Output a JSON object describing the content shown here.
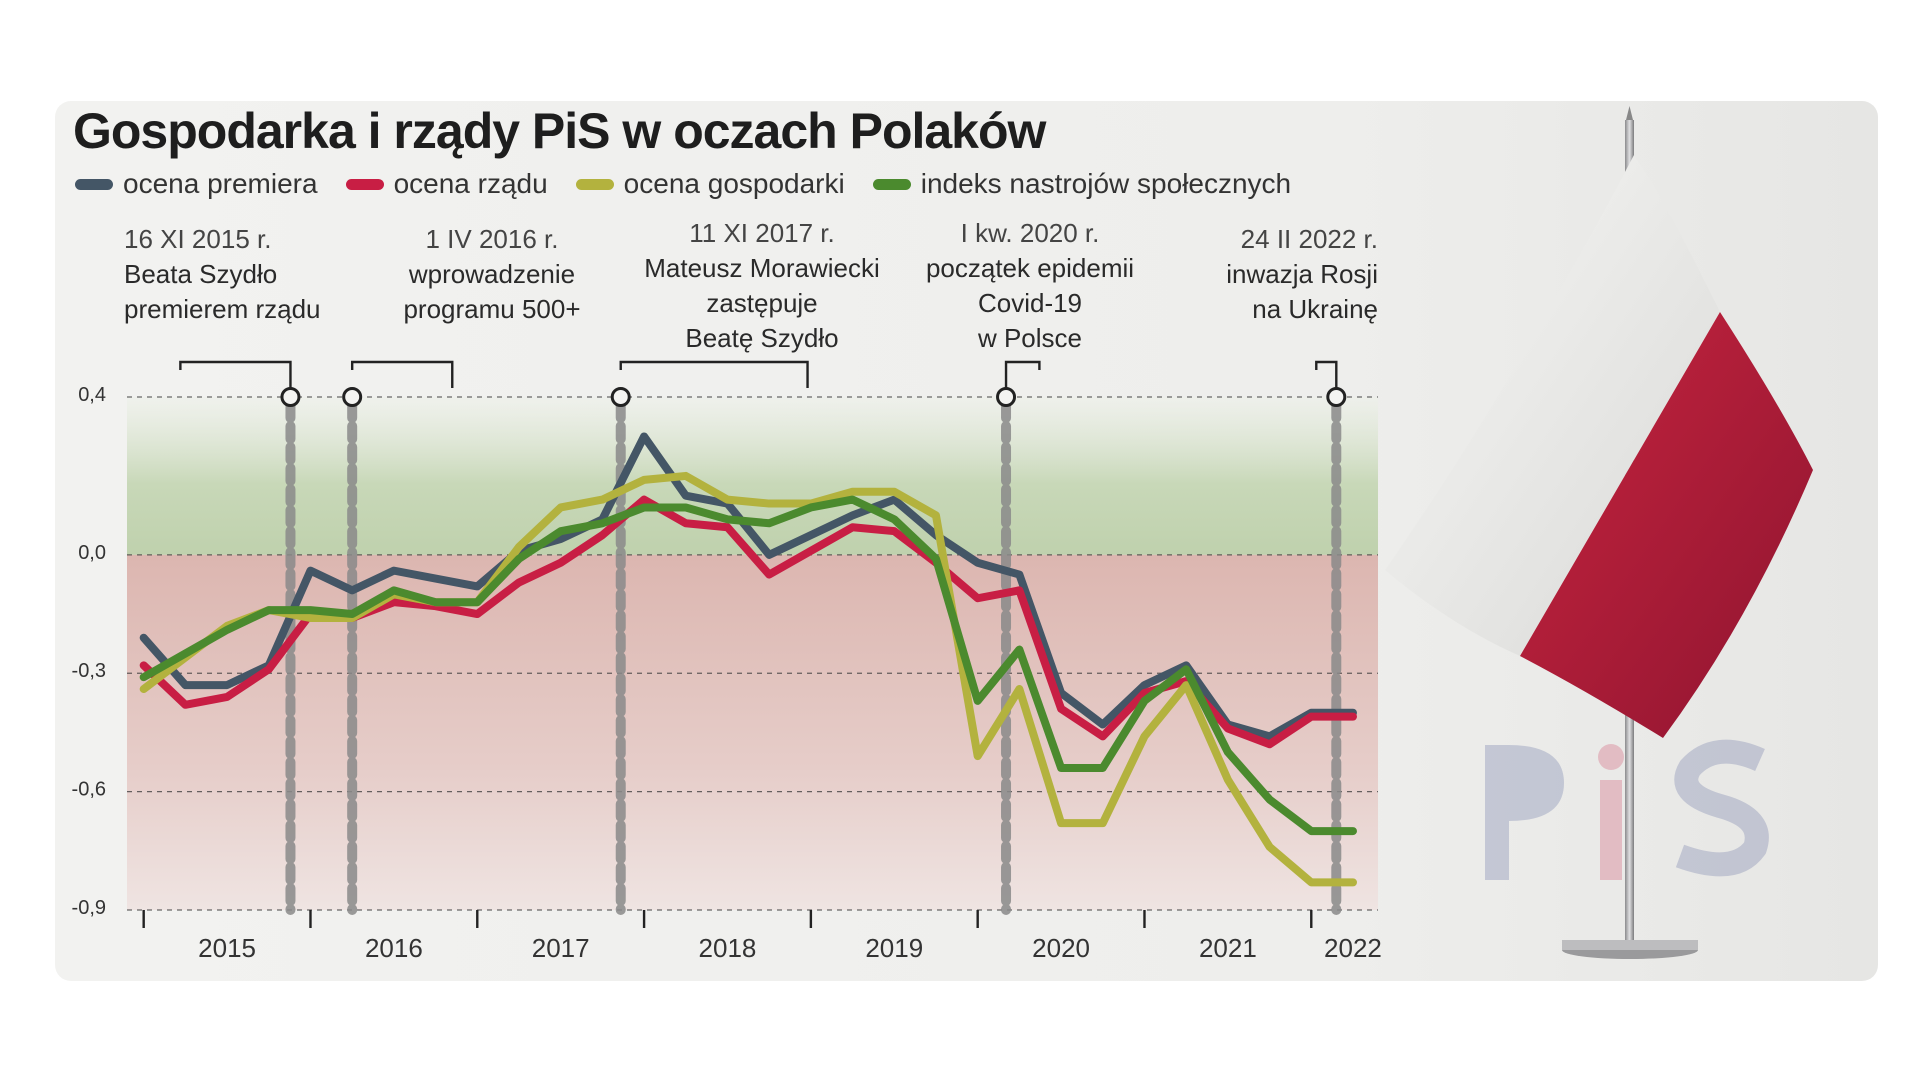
{
  "title": "Gospodarka i rządy PiS w oczach Polaków",
  "legend": [
    {
      "label": "ocena premiera",
      "color": "#445666"
    },
    {
      "label": "ocena rządu",
      "color": "#c81e44"
    },
    {
      "label": "ocena gospodarki",
      "color": "#b3b23e"
    },
    {
      "label": "indeks nastrojów społecznych",
      "color": "#4b8a2e"
    }
  ],
  "annotations": [
    {
      "date": "16 XI 2015 r.",
      "line1": "Beata Szydło",
      "line2": "premierem rządu",
      "line3": ""
    },
    {
      "date": "1 IV 2016 r.",
      "line1": "wprowadzenie",
      "line2": "programu 500+",
      "line3": ""
    },
    {
      "date": "11 XI 2017 r.",
      "line1": "Mateusz Morawiecki",
      "line2": "zastępuje",
      "line3": "Beatę Szydło"
    },
    {
      "date": "I kw. 2020 r.",
      "line1": "początek epidemii",
      "line2": "Covid-19",
      "line3": "w Polsce"
    },
    {
      "date": "24 II 2022 r.",
      "line1": "inwazja Rosji",
      "line2": "na Ukrainę",
      "line3": ""
    }
  ],
  "chart_data": {
    "type": "line",
    "title": "Gospodarka i rządy PiS w oczach Polaków",
    "xlabel": "",
    "ylabel": "",
    "ylim": [
      -0.9,
      0.4
    ],
    "y_ticks": [
      "0,4",
      "0,0",
      "-0,3",
      "-0,6",
      "-0,9"
    ],
    "y_tick_values": [
      0.4,
      0.0,
      -0.3,
      -0.6,
      -0.9
    ],
    "x_tick_labels": [
      "2015",
      "2016",
      "2017",
      "2018",
      "2019",
      "2020",
      "2021",
      "2022"
    ],
    "x_tick_values": [
      2015.0,
      2016.0,
      2017.0,
      2018.0,
      2019.0,
      2020.0,
      2021.0,
      2022.0
    ],
    "x_label_positions": [
      2015.5,
      2016.5,
      2017.5,
      2018.5,
      2019.5,
      2020.5,
      2021.5,
      2022.25
    ],
    "xlim": [
      2014.9,
      2022.4
    ],
    "event_x": [
      2015.88,
      2016.25,
      2017.86,
      2020.17,
      2022.15
    ],
    "x": [
      2015.0,
      2015.25,
      2015.5,
      2015.75,
      2016.0,
      2016.25,
      2016.5,
      2016.75,
      2017.0,
      2017.25,
      2017.5,
      2017.75,
      2018.0,
      2018.25,
      2018.5,
      2018.75,
      2019.0,
      2019.25,
      2019.5,
      2019.75,
      2020.0,
      2020.25,
      2020.5,
      2020.75,
      2021.0,
      2021.25,
      2021.5,
      2021.75,
      2022.0,
      2022.25
    ],
    "series": [
      {
        "name": "ocena premiera",
        "color": "#445666",
        "values": [
          -0.21,
          -0.33,
          -0.33,
          -0.28,
          -0.04,
          -0.09,
          -0.04,
          -0.06,
          -0.08,
          0.01,
          0.04,
          0.09,
          0.3,
          0.15,
          0.13,
          0.0,
          0.05,
          0.1,
          0.14,
          0.05,
          -0.02,
          -0.05,
          -0.35,
          -0.43,
          -0.33,
          -0.28,
          -0.43,
          -0.46,
          -0.4,
          -0.4
        ]
      },
      {
        "name": "ocena rządu",
        "color": "#c81e44",
        "values": [
          -0.28,
          -0.38,
          -0.36,
          -0.29,
          -0.15,
          -0.16,
          -0.12,
          -0.13,
          -0.15,
          -0.07,
          -0.02,
          0.05,
          0.14,
          0.08,
          0.07,
          -0.05,
          0.01,
          0.07,
          0.06,
          -0.02,
          -0.11,
          -0.09,
          -0.39,
          -0.46,
          -0.35,
          -0.32,
          -0.44,
          -0.48,
          -0.41,
          -0.41
        ]
      },
      {
        "name": "ocena gospodarki",
        "color": "#b3b23e",
        "values": [
          -0.34,
          -0.26,
          -0.18,
          -0.14,
          -0.16,
          -0.16,
          -0.1,
          -0.12,
          -0.12,
          0.02,
          0.12,
          0.14,
          0.19,
          0.2,
          0.14,
          0.13,
          0.13,
          0.16,
          0.16,
          0.1,
          -0.51,
          -0.34,
          -0.68,
          -0.68,
          -0.46,
          -0.33,
          -0.57,
          -0.74,
          -0.83,
          -0.83
        ]
      },
      {
        "name": "indeks nastrojów społecznych",
        "color": "#4b8a2e",
        "values": [
          -0.31,
          -0.25,
          -0.19,
          -0.14,
          -0.14,
          -0.15,
          -0.09,
          -0.12,
          -0.12,
          -0.01,
          0.06,
          0.08,
          0.12,
          0.12,
          0.09,
          0.08,
          0.12,
          0.14,
          0.09,
          -0.01,
          -0.37,
          -0.24,
          -0.54,
          -0.54,
          -0.37,
          -0.29,
          -0.5,
          -0.62,
          -0.7,
          -0.7
        ]
      }
    ]
  }
}
